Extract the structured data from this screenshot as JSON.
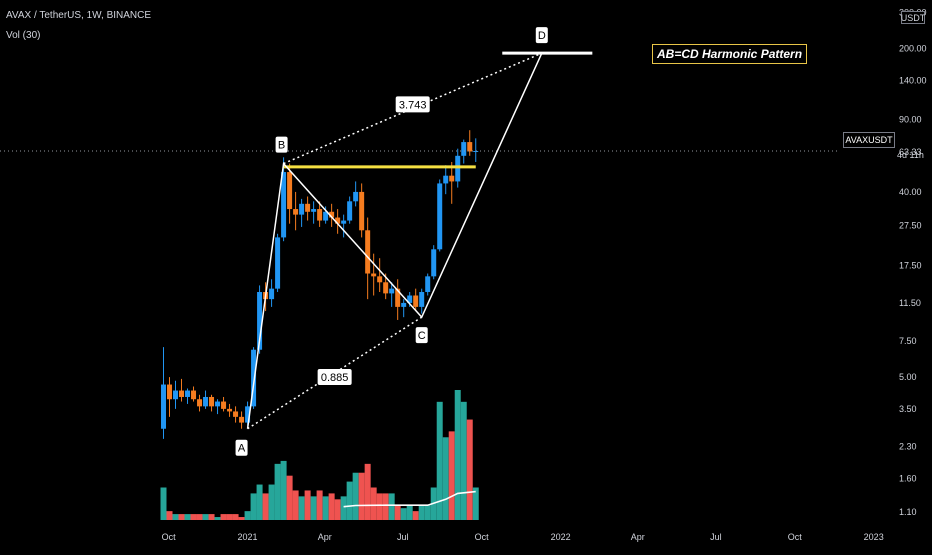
{
  "header": {
    "title": "AVAX / TetherUS, 1W, BINANCE",
    "volume_label": "Vol (30)"
  },
  "price_axis": {
    "unit": "USDT",
    "ticks": [
      "300.00",
      "200.00",
      "140.00",
      "90.00",
      "63.33",
      "40.00",
      "27.50",
      "17.50",
      "11.50",
      "7.50",
      "5.00",
      "3.50",
      "2.30",
      "1.60",
      "1.10"
    ],
    "symbol_tag": "AVAXUSDT",
    "current_price": "63.33",
    "countdown": "4d 11h"
  },
  "time_axis": {
    "ticks": [
      "Oct",
      "2021",
      "Apr",
      "Jul",
      "Oct",
      "2022",
      "Apr",
      "Jul",
      "Oct",
      "2023"
    ]
  },
  "annotation": {
    "pattern_title": "AB=CD Harmonic Pattern",
    "points": [
      "A",
      "B",
      "C",
      "D"
    ],
    "ratio_ab": "0.885",
    "ratio_bd": "3.743"
  },
  "colors": {
    "background": "#000000",
    "up": "#2196f3",
    "down": "#f57c1f",
    "volume_up": "#26a69a",
    "volume_down": "#ef5350",
    "resistance_line": "#f5e042",
    "pattern_line": "#ffffff",
    "pattern_title_border": "#e8c547"
  },
  "chart_data": {
    "type": "candlestick",
    "scale": "log",
    "price_range": [
      0.95,
      330
    ],
    "x_range": [
      "2020-09-21",
      "2023-01-20"
    ],
    "legend": "none",
    "grid": false,
    "weeks": [
      "2020-09-21",
      "2020-09-28",
      "2020-10-05",
      "2020-10-12",
      "2020-10-19",
      "2020-10-26",
      "2020-11-02",
      "2020-11-09",
      "2020-11-16",
      "2020-11-23",
      "2020-11-30",
      "2020-12-07",
      "2020-12-14",
      "2020-12-21",
      "2020-12-28",
      "2021-01-04",
      "2021-01-11",
      "2021-01-18",
      "2021-01-25",
      "2021-02-01",
      "2021-02-08",
      "2021-02-15",
      "2021-02-22",
      "2021-03-01",
      "2021-03-08",
      "2021-03-15",
      "2021-03-22",
      "2021-03-29",
      "2021-04-05",
      "2021-04-12",
      "2021-04-19",
      "2021-04-26",
      "2021-05-03",
      "2021-05-10",
      "2021-05-17",
      "2021-05-24",
      "2021-05-31",
      "2021-06-07",
      "2021-06-14",
      "2021-06-21",
      "2021-06-28",
      "2021-07-05",
      "2021-07-12",
      "2021-07-19",
      "2021-07-26",
      "2021-08-02",
      "2021-08-09",
      "2021-08-16",
      "2021-08-23",
      "2021-08-30",
      "2021-09-06",
      "2021-09-13",
      "2021-09-20"
    ],
    "candles": [
      [
        2.8,
        7.0,
        2.5,
        4.6
      ],
      [
        4.6,
        5.0,
        3.2,
        3.9
      ],
      [
        3.9,
        4.8,
        3.5,
        4.3
      ],
      [
        4.3,
        4.9,
        3.8,
        4.0
      ],
      [
        4.0,
        4.4,
        3.7,
        4.3
      ],
      [
        4.3,
        4.5,
        3.8,
        3.9
      ],
      [
        3.9,
        4.1,
        3.4,
        3.6
      ],
      [
        3.6,
        4.3,
        3.5,
        4.0
      ],
      [
        4.0,
        4.1,
        3.4,
        3.6
      ],
      [
        3.6,
        3.9,
        3.3,
        3.8
      ],
      [
        3.8,
        4.0,
        3.4,
        3.5
      ],
      [
        3.5,
        3.7,
        3.2,
        3.4
      ],
      [
        3.4,
        3.6,
        3.0,
        3.2
      ],
      [
        3.2,
        3.4,
        2.8,
        3.0
      ],
      [
        3.0,
        3.8,
        2.9,
        3.6
      ],
      [
        3.6,
        7.0,
        3.5,
        6.8
      ],
      [
        6.8,
        14.0,
        6.5,
        13.0
      ],
      [
        13.0,
        14.5,
        10.5,
        12.0
      ],
      [
        12.0,
        15.0,
        11.0,
        13.5
      ],
      [
        13.5,
        25.0,
        13.0,
        24.0
      ],
      [
        24.0,
        59.0,
        23.0,
        50.0
      ],
      [
        50.0,
        55.0,
        28.0,
        33.0
      ],
      [
        33.0,
        40.0,
        26.0,
        31.0
      ],
      [
        31.0,
        37.0,
        27.0,
        35.0
      ],
      [
        35.0,
        38.0,
        29.0,
        32.0
      ],
      [
        32.0,
        36.0,
        28.0,
        33.0
      ],
      [
        33.0,
        36.0,
        27.0,
        29.0
      ],
      [
        29.0,
        34.0,
        28.0,
        32.0
      ],
      [
        32.0,
        35.0,
        27.0,
        30.0
      ],
      [
        30.0,
        33.0,
        25.0,
        28.0
      ],
      [
        28.0,
        31.0,
        24.0,
        29.0
      ],
      [
        29.0,
        38.0,
        28.0,
        36.0
      ],
      [
        36.0,
        45.0,
        34.0,
        40.0
      ],
      [
        40.0,
        44.0,
        24.0,
        26.0
      ],
      [
        26.0,
        30.0,
        12.0,
        16.0
      ],
      [
        16.0,
        20.0,
        12.5,
        15.5
      ],
      [
        15.5,
        19.0,
        13.0,
        14.5
      ],
      [
        14.5,
        16.0,
        12.0,
        12.8
      ],
      [
        12.8,
        14.5,
        11.0,
        13.5
      ],
      [
        13.5,
        15.0,
        9.5,
        11.0
      ],
      [
        11.0,
        12.0,
        9.8,
        11.5
      ],
      [
        11.5,
        13.0,
        11.0,
        12.5
      ],
      [
        12.5,
        13.5,
        10.5,
        11.0
      ],
      [
        11.0,
        13.5,
        10.2,
        13.0
      ],
      [
        13.0,
        16.0,
        12.5,
        15.5
      ],
      [
        15.5,
        22.0,
        15.0,
        21.0
      ],
      [
        21.0,
        46.0,
        20.5,
        44.0
      ],
      [
        44.0,
        54.0,
        39.0,
        48.0
      ],
      [
        48.0,
        56.0,
        35.0,
        45.0
      ],
      [
        45.0,
        65.0,
        42.0,
        60.0
      ],
      [
        60.0,
        72.0,
        55.0,
        70.0
      ],
      [
        70.0,
        80.0,
        60.0,
        63.0
      ],
      [
        63.0,
        73.0,
        56.0,
        63.33
      ]
    ],
    "volume": [
      11,
      3,
      2,
      2,
      2,
      2,
      2,
      2,
      2,
      1,
      2,
      2,
      2,
      1,
      3,
      9,
      12,
      9,
      12,
      19,
      20,
      15,
      10,
      8,
      10,
      8,
      10,
      8,
      9,
      7,
      8,
      13,
      16,
      16,
      19,
      11,
      9,
      9,
      9,
      5,
      4,
      5,
      3,
      5,
      5,
      11,
      40,
      28,
      30,
      44,
      40,
      34,
      11
    ],
    "volume_ma": [
      {
        "week": "2021-04-19",
        "value": 4.5
      },
      {
        "week": "2021-05-03",
        "value": 4.9
      },
      {
        "week": "2021-06-07",
        "value": 5.0
      },
      {
        "week": "2021-07-26",
        "value": 5.0
      },
      {
        "week": "2021-08-16",
        "value": 7.0
      },
      {
        "week": "2021-08-30",
        "value": 9.0
      },
      {
        "week": "2021-09-20",
        "value": 9.6
      }
    ],
    "pattern": {
      "A": {
        "week": "2020-12-28",
        "price": 2.8
      },
      "B": {
        "week": "2021-02-08",
        "price": 55.0
      },
      "C": {
        "week": "2021-07-19",
        "price": 9.8
      },
      "D": {
        "week": "2021-12-06",
        "price": 190.0
      },
      "D_level_from": "2021-10-25",
      "D_level_to": "2022-02-07",
      "resistance": {
        "from": "2021-02-08",
        "to": "2021-09-20",
        "price": 53.0
      }
    }
  }
}
